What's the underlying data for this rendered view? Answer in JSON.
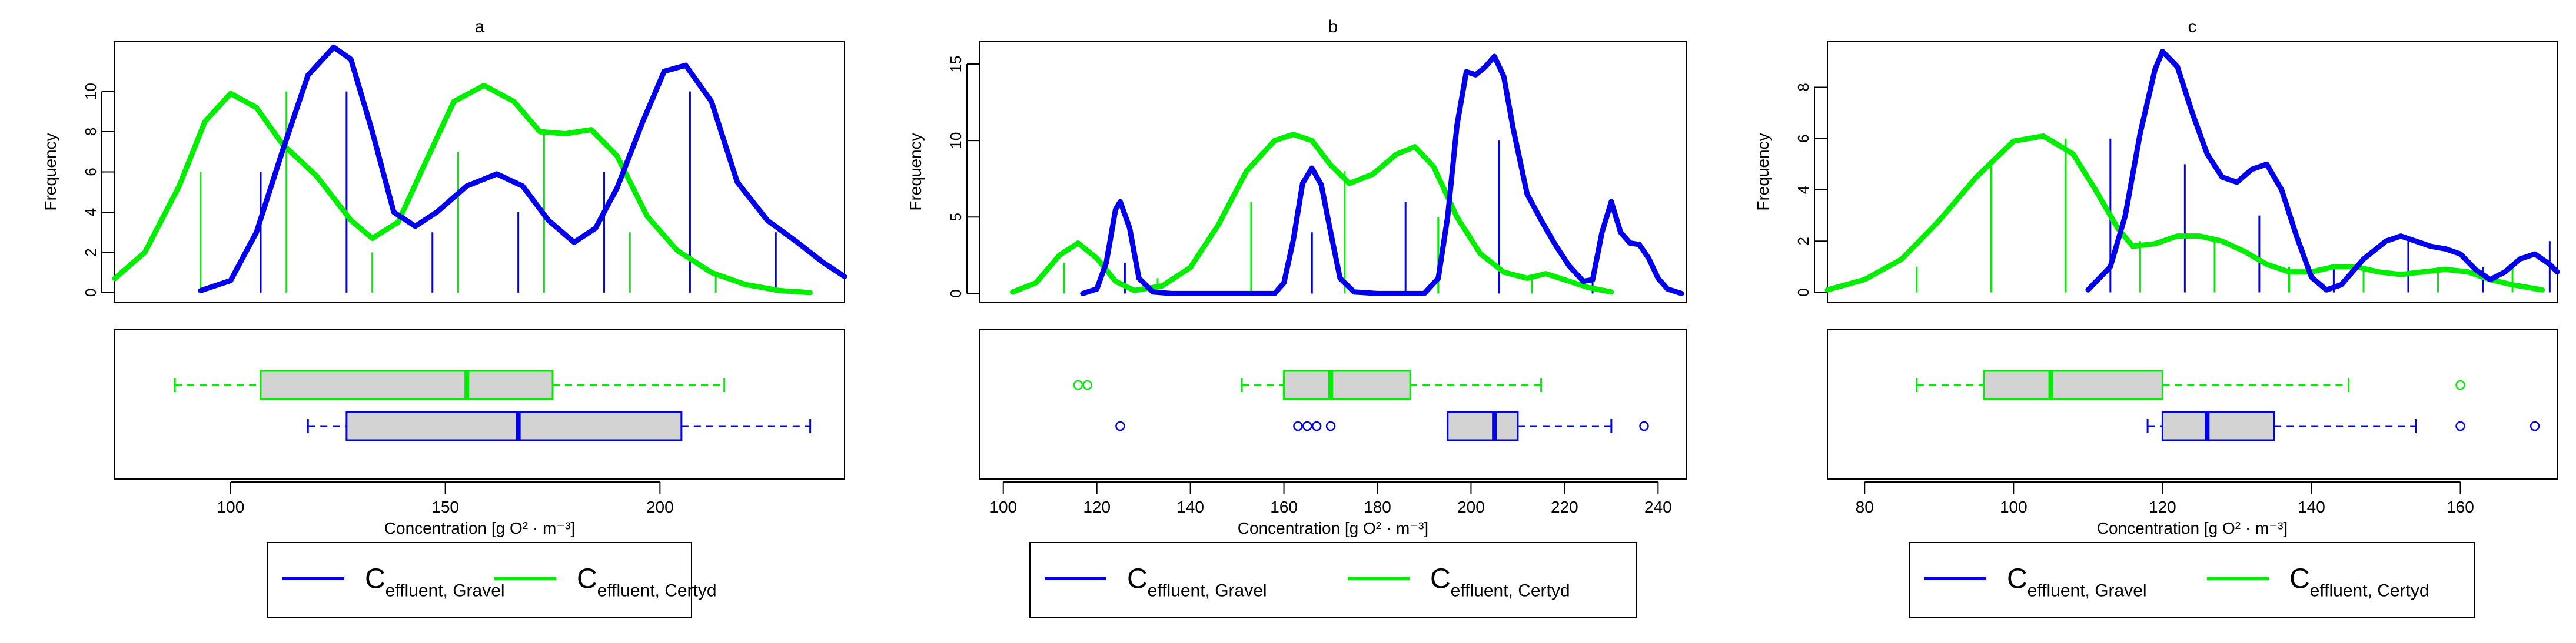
{
  "chart_data": {
    "type": "composite",
    "shared": {
      "x_label": "Concentration [g O² · m⁻³]",
      "hist_y_label": "Frequency",
      "colors": {
        "gravel": "#0000ee",
        "certyd": "#00ee00",
        "box_fill": "#d3d3d3"
      },
      "legend": [
        {
          "key": "gravel",
          "main": "C",
          "sub": "effluent, Gravel"
        },
        {
          "key": "certyd",
          "main": "C",
          "sub": "effluent, Certyd"
        }
      ]
    },
    "panels": [
      {
        "title": "a",
        "xlim": [
          73,
          243
        ],
        "x_ticks": [
          100,
          150,
          200
        ],
        "ylim": [
          -0.5,
          12.5
        ],
        "y_ticks": [
          0,
          2,
          4,
          6,
          8,
          10
        ],
        "spikes": {
          "gravel": [
            [
              107,
              6
            ],
            [
              127,
              10
            ],
            [
              147,
              3
            ],
            [
              167,
              4
            ],
            [
              187,
              6
            ],
            [
              207,
              10
            ],
            [
              227,
              3
            ]
          ],
          "certyd": [
            [
              93,
              6
            ],
            [
              113,
              10
            ],
            [
              133,
              2
            ],
            [
              153,
              7
            ],
            [
              173,
              8
            ],
            [
              193,
              3
            ],
            [
              213,
              1
            ]
          ]
        },
        "density": {
          "gravel": [
            [
              93,
              0.1
            ],
            [
              100,
              0.6
            ],
            [
              106,
              3.0
            ],
            [
              112,
              7.0
            ],
            [
              118,
              10.8
            ],
            [
              124,
              12.2
            ],
            [
              128,
              11.6
            ],
            [
              133,
              8.0
            ],
            [
              138,
              4.0
            ],
            [
              143,
              3.3
            ],
            [
              148,
              4.0
            ],
            [
              155,
              5.3
            ],
            [
              162,
              5.9
            ],
            [
              168,
              5.3
            ],
            [
              174,
              3.6
            ],
            [
              180,
              2.5
            ],
            [
              185,
              3.2
            ],
            [
              190,
              5.2
            ],
            [
              196,
              8.5
            ],
            [
              201,
              11.0
            ],
            [
              206,
              11.3
            ],
            [
              212,
              9.5
            ],
            [
              218,
              5.5
            ],
            [
              225,
              3.6
            ],
            [
              232,
              2.5
            ],
            [
              238,
              1.5
            ],
            [
              243,
              0.8
            ]
          ],
          "certyd": [
            [
              73,
              0.7
            ],
            [
              80,
              2.0
            ],
            [
              88,
              5.3
            ],
            [
              94,
              8.5
            ],
            [
              100,
              9.9
            ],
            [
              106,
              9.2
            ],
            [
              112,
              7.4
            ],
            [
              120,
              5.8
            ],
            [
              128,
              3.6
            ],
            [
              133,
              2.7
            ],
            [
              139,
              3.5
            ],
            [
              145,
              6.3
            ],
            [
              152,
              9.5
            ],
            [
              159,
              10.3
            ],
            [
              166,
              9.5
            ],
            [
              172,
              8.0
            ],
            [
              178,
              7.9
            ],
            [
              184,
              8.1
            ],
            [
              190,
              6.8
            ],
            [
              197,
              3.8
            ],
            [
              204,
              2.1
            ],
            [
              212,
              1.0
            ],
            [
              220,
              0.4
            ],
            [
              228,
              0.1
            ],
            [
              235,
              0.0
            ]
          ]
        },
        "boxplots": {
          "certyd": {
            "min": 87,
            "q1": 107,
            "median": 155,
            "q3": 175,
            "max": 215,
            "outliers": []
          },
          "gravel": {
            "min": 118,
            "q1": 127,
            "median": 167,
            "q3": 205,
            "max": 235,
            "outliers": []
          }
        }
      },
      {
        "title": "b",
        "xlim": [
          95,
          246
        ],
        "x_ticks": [
          100,
          120,
          140,
          160,
          180,
          200,
          220,
          240
        ],
        "ylim": [
          -0.6,
          16.5
        ],
        "y_ticks": [
          0,
          5,
          10,
          15
        ],
        "spikes": {
          "gravel": [
            [
              126,
              2
            ],
            [
              166,
              4
            ],
            [
              186,
              6
            ],
            [
              206,
              10
            ],
            [
              226,
              1
            ]
          ],
          "certyd": [
            [
              113,
              2
            ],
            [
              133,
              1
            ],
            [
              153,
              6
            ],
            [
              173,
              8
            ],
            [
              193,
              5
            ],
            [
              213,
              1
            ]
          ]
        },
        "density": {
          "gravel": [
            [
              117,
              0.0
            ],
            [
              120,
              0.3
            ],
            [
              122,
              2.0
            ],
            [
              124,
              5.5
            ],
            [
              125,
              6.0
            ],
            [
              127,
              4.3
            ],
            [
              129,
              1.0
            ],
            [
              132,
              0.1
            ],
            [
              136,
              0.0
            ],
            [
              150,
              0.0
            ],
            [
              158,
              0.0
            ],
            [
              160,
              0.7
            ],
            [
              162,
              3.5
            ],
            [
              164,
              7.2
            ],
            [
              166,
              8.2
            ],
            [
              168,
              7.1
            ],
            [
              170,
              4.0
            ],
            [
              172,
              1.0
            ],
            [
              175,
              0.1
            ],
            [
              180,
              0.0
            ],
            [
              190,
              0.0
            ],
            [
              193,
              1.0
            ],
            [
              195,
              5.0
            ],
            [
              197,
              11.0
            ],
            [
              199,
              14.5
            ],
            [
              201,
              14.3
            ],
            [
              203,
              14.8
            ],
            [
              205,
              15.5
            ],
            [
              207,
              14.2
            ],
            [
              209,
              10.8
            ],
            [
              212,
              6.5
            ],
            [
              215,
              4.8
            ],
            [
              218,
              3.2
            ],
            [
              221,
              1.8
            ],
            [
              224,
              0.8
            ],
            [
              226,
              0.9
            ],
            [
              228,
              4.0
            ],
            [
              230,
              6.0
            ],
            [
              232,
              4.0
            ],
            [
              234,
              3.3
            ],
            [
              236,
              3.2
            ],
            [
              238,
              2.3
            ],
            [
              240,
              1.0
            ],
            [
              242,
              0.3
            ],
            [
              245,
              0.0
            ]
          ],
          "certyd": [
            [
              102,
              0.1
            ],
            [
              107,
              0.7
            ],
            [
              112,
              2.5
            ],
            [
              116,
              3.3
            ],
            [
              120,
              2.3
            ],
            [
              124,
              0.8
            ],
            [
              128,
              0.2
            ],
            [
              134,
              0.5
            ],
            [
              140,
              1.7
            ],
            [
              146,
              4.5
            ],
            [
              152,
              8.0
            ],
            [
              158,
              10.0
            ],
            [
              162,
              10.4
            ],
            [
              166,
              10.0
            ],
            [
              170,
              8.4
            ],
            [
              174,
              7.2
            ],
            [
              179,
              7.8
            ],
            [
              184,
              9.1
            ],
            [
              188,
              9.6
            ],
            [
              192,
              8.3
            ],
            [
              197,
              5.0
            ],
            [
              202,
              2.6
            ],
            [
              207,
              1.4
            ],
            [
              212,
              1.0
            ],
            [
              216,
              1.3
            ],
            [
              220,
              0.9
            ],
            [
              225,
              0.4
            ],
            [
              230,
              0.1
            ]
          ]
        },
        "boxplots": {
          "certyd": {
            "min": 151,
            "q1": 160,
            "median": 170,
            "q3": 187,
            "max": 215,
            "outliers": [
              116,
              118
            ]
          },
          "gravel": {
            "min": 195,
            "q1": 195,
            "median": 205,
            "q3": 210,
            "max": 230,
            "outliers": [
              125,
              163,
              165,
              167,
              170,
              237
            ]
          }
        }
      },
      {
        "title": "c",
        "xlim": [
          75,
          173
        ],
        "x_ticks": [
          80,
          100,
          120,
          140,
          160
        ],
        "ylim": [
          -0.4,
          9.8
        ],
        "y_ticks": [
          0,
          2,
          4,
          6,
          8
        ],
        "spikes": {
          "gravel": [
            [
              113,
              6
            ],
            [
              123,
              5
            ],
            [
              133,
              3
            ],
            [
              143,
              1
            ],
            [
              153,
              2
            ],
            [
              163,
              1
            ],
            [
              172,
              2
            ]
          ],
          "certyd": [
            [
              87,
              1
            ],
            [
              97,
              5
            ],
            [
              107,
              6
            ],
            [
              117,
              2
            ],
            [
              127,
              2
            ],
            [
              137,
              1
            ],
            [
              147,
              1
            ],
            [
              157,
              1
            ],
            [
              167,
              1
            ]
          ]
        },
        "density": {
          "gravel": [
            [
              110,
              0.1
            ],
            [
              113,
              1.0
            ],
            [
              115,
              3.0
            ],
            [
              117,
              6.2
            ],
            [
              119,
              8.7
            ],
            [
              120,
              9.4
            ],
            [
              122,
              8.8
            ],
            [
              124,
              7.0
            ],
            [
              126,
              5.4
            ],
            [
              128,
              4.5
            ],
            [
              130,
              4.3
            ],
            [
              132,
              4.8
            ],
            [
              134,
              5.0
            ],
            [
              136,
              4.0
            ],
            [
              138,
              2.2
            ],
            [
              140,
              0.6
            ],
            [
              142,
              0.1
            ],
            [
              144,
              0.3
            ],
            [
              147,
              1.3
            ],
            [
              150,
              2.0
            ],
            [
              152,
              2.2
            ],
            [
              154,
              2.0
            ],
            [
              156,
              1.8
            ],
            [
              158,
              1.7
            ],
            [
              160,
              1.5
            ],
            [
              162,
              0.9
            ],
            [
              164,
              0.5
            ],
            [
              166,
              0.8
            ],
            [
              168,
              1.3
            ],
            [
              170,
              1.5
            ],
            [
              172,
              1.1
            ],
            [
              173,
              0.8
            ]
          ],
          "certyd": [
            [
              75,
              0.1
            ],
            [
              80,
              0.5
            ],
            [
              85,
              1.3
            ],
            [
              90,
              2.8
            ],
            [
              95,
              4.5
            ],
            [
              100,
              5.9
            ],
            [
              104,
              6.1
            ],
            [
              108,
              5.4
            ],
            [
              111,
              4.0
            ],
            [
              114,
              2.5
            ],
            [
              116,
              1.8
            ],
            [
              119,
              1.9
            ],
            [
              122,
              2.2
            ],
            [
              125,
              2.2
            ],
            [
              128,
              2.0
            ],
            [
              131,
              1.6
            ],
            [
              134,
              1.1
            ],
            [
              137,
              0.8
            ],
            [
              140,
              0.8
            ],
            [
              143,
              1.0
            ],
            [
              146,
              1.0
            ],
            [
              149,
              0.8
            ],
            [
              152,
              0.7
            ],
            [
              155,
              0.8
            ],
            [
              158,
              0.9
            ],
            [
              161,
              0.8
            ],
            [
              164,
              0.5
            ],
            [
              167,
              0.3
            ],
            [
              171,
              0.1
            ]
          ]
        },
        "boxplots": {
          "certyd": {
            "min": 87,
            "q1": 96,
            "median": 105,
            "q3": 120,
            "max": 145,
            "outliers": [
              160
            ]
          },
          "gravel": {
            "min": 118,
            "q1": 120,
            "median": 126,
            "q3": 135,
            "max": 154,
            "outliers": [
              160,
              170
            ]
          }
        }
      }
    ]
  }
}
